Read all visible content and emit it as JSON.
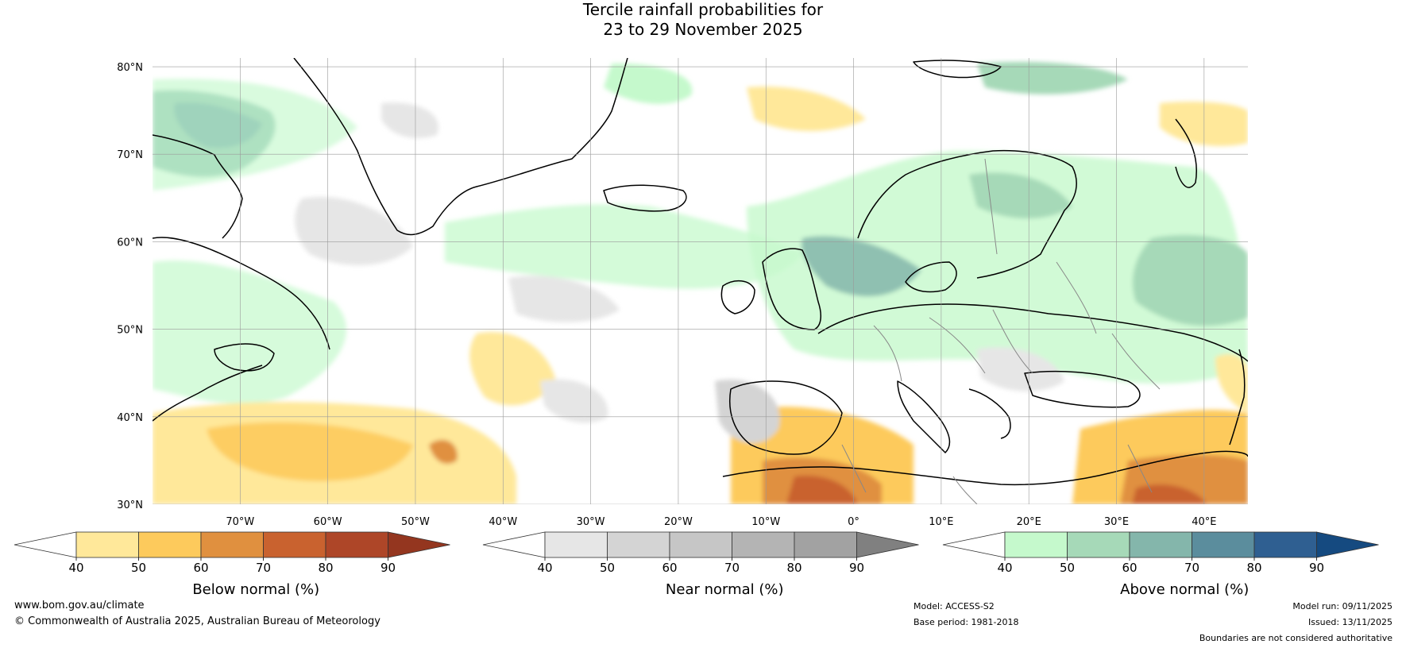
{
  "title": {
    "line1": "Tercile rainfall probabilities for",
    "line2": "23 to 29 November 2025"
  },
  "map": {
    "lat_labels": [
      "80°N",
      "70°N",
      "60°N",
      "50°N",
      "40°N",
      "30°N"
    ],
    "lon_labels": [
      "70°W",
      "60°W",
      "50°W",
      "40°W",
      "30°W",
      "20°W",
      "10°W",
      "0°",
      "10°E",
      "20°E",
      "30°E",
      "40°E"
    ],
    "extent": {
      "lon_min": -80,
      "lon_max": 45,
      "lat_min": 30,
      "lat_max": 81
    },
    "regions": [
      {
        "name": "greenland",
        "category": "coast"
      },
      {
        "name": "baffin",
        "category": "coast"
      },
      {
        "name": "labrador",
        "category": "coast"
      },
      {
        "name": "newfoundland",
        "category": "coast"
      },
      {
        "name": "iceland",
        "category": "coast"
      },
      {
        "name": "scandinavia",
        "category": "coast"
      },
      {
        "name": "britain",
        "category": "coast"
      },
      {
        "name": "ireland",
        "category": "coast"
      },
      {
        "name": "europe",
        "category": "coast"
      },
      {
        "name": "iberia",
        "category": "coast"
      },
      {
        "name": "italy",
        "category": "coast"
      },
      {
        "name": "north-africa",
        "category": "coast"
      },
      {
        "name": "svalbard",
        "category": "coast"
      },
      {
        "name": "novaya-zemlya",
        "category": "coast"
      }
    ]
  },
  "colorbars": [
    {
      "id": "below",
      "label": "Below normal (%)",
      "ticks": [
        "40",
        "50",
        "60",
        "70",
        "80",
        "90"
      ],
      "colors": [
        "#ffffff",
        "#ffe89a",
        "#fdca5c",
        "#e0903f",
        "#c9622f",
        "#ae4628",
        "#94361f"
      ]
    },
    {
      "id": "near",
      "label": "Near normal (%)",
      "ticks": [
        "40",
        "50",
        "60",
        "70",
        "80",
        "90"
      ],
      "colors": [
        "#ffffff",
        "#e6e6e6",
        "#d4d4d4",
        "#c6c6c6",
        "#b4b4b4",
        "#a2a2a2",
        "#808080"
      ]
    },
    {
      "id": "above",
      "label": "Above normal (%)",
      "ticks": [
        "40",
        "50",
        "60",
        "70",
        "80",
        "90"
      ],
      "colors": [
        "#ffffff",
        "#c5f9cc",
        "#a6d9b8",
        "#84b6ab",
        "#5b8d9d",
        "#2f5f91",
        "#154a80"
      ]
    }
  ],
  "footer": {
    "website": "www.bom.gov.au/climate",
    "copyright": "© Commonwealth of Australia 2025, Australian Bureau of Meteorology",
    "model": "Model: ACCESS-S2",
    "base_period": "Base period: 1981-2018",
    "model_run": "Model run: 09/11/2025",
    "issued": "Issued: 13/11/2025",
    "disclaimer": "Boundaries are not considered authoritative"
  }
}
